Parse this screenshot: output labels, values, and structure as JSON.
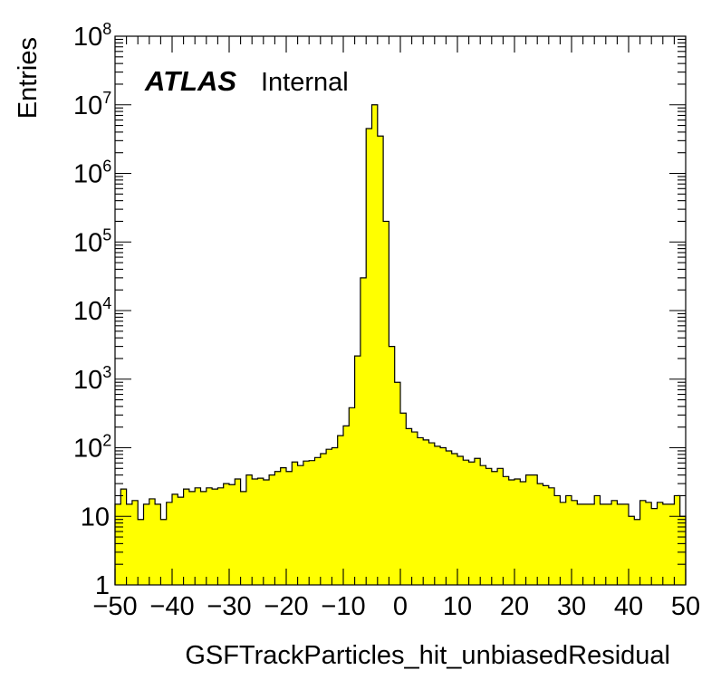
{
  "chart_data": {
    "type": "bar",
    "subtype": "histogram",
    "title": "",
    "xlabel": "GSFTrackParticles_hit_unbiasedResidual",
    "ylabel": "Entries",
    "xlim": [
      -50,
      50
    ],
    "ylim": [
      1,
      100000000
    ],
    "yscale": "log",
    "grid": false,
    "legend": null,
    "fill_color": "#ffff00",
    "line_color": "#000000",
    "annotations": [
      {
        "text": "ATLAS",
        "style": "bold-italic"
      },
      {
        "text": "Internal",
        "style": "normal"
      }
    ],
    "x_tick_labels": [
      "−50",
      "−40",
      "−30",
      "−20",
      "−10",
      "0",
      "10",
      "20",
      "30",
      "40",
      "50"
    ],
    "y_tick_labels": [
      {
        "base": "1",
        "exp": ""
      },
      {
        "base": "10",
        "exp": ""
      },
      {
        "base": "10",
        "exp": "2"
      },
      {
        "base": "10",
        "exp": "3"
      },
      {
        "base": "10",
        "exp": "4"
      },
      {
        "base": "10",
        "exp": "5"
      },
      {
        "base": "10",
        "exp": "6"
      },
      {
        "base": "10",
        "exp": "7"
      },
      {
        "base": "10",
        "exp": "8"
      }
    ],
    "bin_edges_from": -50,
    "bin_width": 1,
    "values": [
      15,
      25,
      15,
      17,
      9,
      15,
      18,
      15,
      9,
      16,
      21,
      19,
      25,
      23,
      26,
      23,
      26,
      25,
      26,
      30,
      29,
      35,
      23,
      40,
      35,
      36,
      34,
      40,
      45,
      51,
      45,
      62,
      55,
      64,
      65,
      72,
      82,
      95,
      100,
      150,
      208,
      383,
      2180,
      30000,
      4500000,
      10000000,
      3500000,
      200000,
      3000,
      900,
      320,
      190,
      170,
      140,
      130,
      118,
      105,
      100,
      90,
      82,
      75,
      66,
      62,
      70,
      55,
      50,
      45,
      50,
      38,
      34,
      35,
      32,
      40,
      40,
      30,
      28,
      26,
      20,
      16,
      20,
      17,
      15,
      15,
      15,
      20,
      15,
      15,
      17,
      15,
      15,
      10,
      9,
      17,
      16,
      13,
      16,
      15,
      15,
      20,
      10
    ]
  }
}
